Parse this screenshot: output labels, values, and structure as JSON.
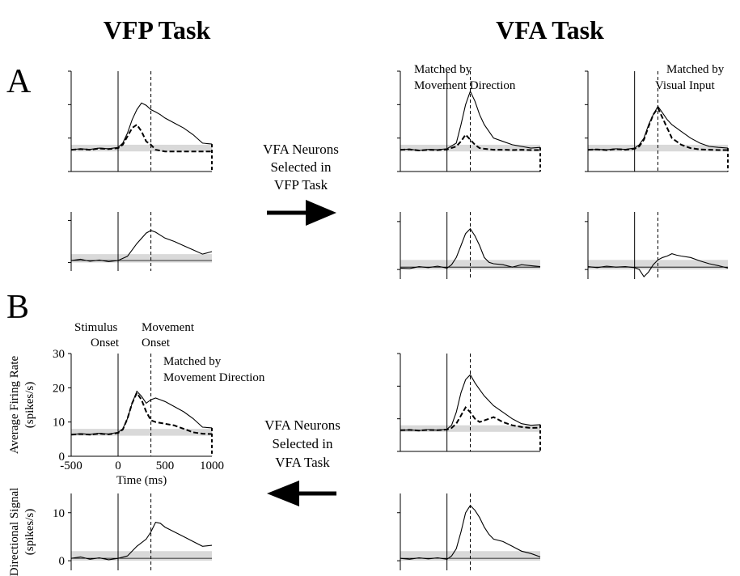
{
  "titles": {
    "left": "VFP Task",
    "right": "VFA Task"
  },
  "panel_letters": [
    "A",
    "B"
  ],
  "annotations": {
    "matched_direction": [
      "Matched by",
      "Movement Direction"
    ],
    "matched_visual": [
      "Matched by",
      "Visual Input"
    ],
    "stimulus_onset": [
      "Stimulus",
      "Onset"
    ],
    "movement_onset": [
      "Movement",
      "Onset"
    ],
    "selected_vfp": [
      "VFA Neurons",
      "Selected in",
      "VFP Task"
    ],
    "selected_vfa": [
      "VFA Neurons",
      "Selected in",
      "VFA Task"
    ]
  },
  "colors": {
    "baseline_band": "#d9d9d9",
    "trace": "#000000",
    "arrow": "#000000"
  },
  "chart_data": [
    {
      "id": "A-vfp-rate",
      "type": "line",
      "xlim": [
        -500,
        1000
      ],
      "ylim": [
        0,
        30
      ],
      "baseline": [
        6,
        8
      ],
      "movement_onset": 350,
      "series": [
        {
          "style": "solid",
          "x": [
            -500,
            -400,
            -300,
            -200,
            -100,
            0,
            50,
            100,
            150,
            200,
            250,
            300,
            350,
            400,
            450,
            500,
            600,
            700,
            800,
            900,
            1000
          ],
          "y": [
            6.5,
            6.8,
            6.6,
            7.0,
            6.8,
            7.2,
            8.5,
            11.5,
            15.5,
            18.5,
            20.5,
            19.8,
            18.5,
            17.8,
            17.0,
            16.0,
            14.5,
            13.0,
            11.0,
            8.5,
            8.2
          ]
        },
        {
          "style": "dashed",
          "x": [
            -500,
            -400,
            -300,
            -200,
            -100,
            0,
            50,
            100,
            150,
            200,
            250,
            300,
            350,
            400,
            500,
            600,
            700,
            800,
            900,
            1000
          ],
          "y": [
            6.5,
            6.7,
            6.5,
            6.9,
            6.7,
            7.0,
            8.0,
            10.5,
            13.0,
            14.0,
            12.0,
            9.0,
            8.0,
            6.5,
            6.0,
            6.0,
            6.0,
            6.0,
            6.0,
            6.0
          ]
        }
      ]
    },
    {
      "id": "A-vfp-dir",
      "type": "line",
      "xlim": [
        -500,
        1000
      ],
      "ylim": [
        -2,
        12
      ],
      "baseline": [
        0,
        2
      ],
      "movement_onset": 350,
      "series": [
        {
          "style": "solid",
          "x": [
            -500,
            -400,
            -300,
            -200,
            -100,
            0,
            100,
            200,
            300,
            350,
            400,
            450,
            500,
            600,
            700,
            800,
            900,
            1000
          ],
          "y": [
            0.5,
            0.8,
            0.3,
            0.6,
            0.2,
            0.5,
            1.5,
            4.5,
            7.0,
            7.6,
            7.2,
            6.5,
            5.8,
            5.0,
            4.0,
            3.0,
            2.0,
            2.6
          ]
        }
      ]
    },
    {
      "id": "A-vfa-direction-rate",
      "type": "line",
      "xlim": [
        -500,
        1000
      ],
      "ylim": [
        0,
        30
      ],
      "baseline": [
        6,
        8
      ],
      "movement_onset": 250,
      "series": [
        {
          "style": "solid",
          "x": [
            -500,
            -400,
            -300,
            -200,
            -100,
            0,
            100,
            150,
            200,
            250,
            300,
            350,
            400,
            450,
            500,
            600,
            700,
            800,
            900,
            1000
          ],
          "y": [
            6.5,
            6.7,
            6.3,
            6.6,
            6.5,
            6.8,
            8.5,
            14.0,
            20.0,
            24.0,
            21.0,
            17.0,
            14.0,
            12.0,
            10.0,
            9.0,
            8.0,
            7.5,
            7.0,
            7.2
          ]
        },
        {
          "style": "dashed",
          "x": [
            -500,
            -400,
            -300,
            -200,
            -100,
            0,
            100,
            150,
            200,
            250,
            300,
            350,
            400,
            500,
            600,
            700,
            800,
            900,
            1000
          ],
          "y": [
            6.5,
            6.6,
            6.3,
            6.5,
            6.4,
            6.6,
            7.5,
            9.0,
            11.0,
            9.5,
            8.0,
            7.0,
            6.8,
            6.5,
            6.5,
            6.4,
            6.5,
            6.4,
            6.4
          ]
        }
      ]
    },
    {
      "id": "A-vfa-direction-dir",
      "type": "line",
      "xlim": [
        -500,
        1000
      ],
      "ylim": [
        -2,
        12
      ],
      "baseline": [
        0,
        2
      ],
      "movement_onset": 250,
      "series": [
        {
          "style": "solid",
          "x": [
            -500,
            -400,
            -300,
            -200,
            -100,
            0,
            50,
            100,
            150,
            200,
            250,
            300,
            350,
            400,
            450,
            500,
            600,
            700,
            800,
            900,
            1000
          ],
          "y": [
            0.3,
            0.2,
            0.6,
            0.4,
            0.7,
            0.3,
            1.0,
            2.5,
            5.0,
            7.5,
            8.5,
            7.0,
            5.0,
            2.5,
            1.5,
            1.2,
            1.0,
            0.5,
            1.0,
            0.8,
            0.6
          ]
        }
      ]
    },
    {
      "id": "A-vfa-visual-rate",
      "type": "line",
      "xlim": [
        -500,
        1000
      ],
      "ylim": [
        0,
        30
      ],
      "baseline": [
        6,
        8
      ],
      "movement_onset": 250,
      "series": [
        {
          "style": "solid",
          "x": [
            -500,
            -400,
            -300,
            -200,
            -100,
            0,
            50,
            100,
            150,
            200,
            250,
            300,
            350,
            400,
            500,
            600,
            700,
            800,
            900,
            1000
          ],
          "y": [
            6.5,
            6.6,
            6.5,
            6.8,
            6.6,
            7.0,
            8.0,
            10.0,
            14.0,
            17.0,
            19.5,
            17.5,
            15.5,
            14.0,
            12.0,
            10.0,
            8.5,
            7.5,
            7.2,
            7.0
          ]
        },
        {
          "style": "dashed",
          "x": [
            -500,
            -400,
            -300,
            -200,
            -100,
            0,
            50,
            100,
            150,
            200,
            250,
            300,
            350,
            400,
            500,
            600,
            700,
            800,
            900,
            1000
          ],
          "y": [
            6.5,
            6.6,
            6.4,
            6.7,
            6.5,
            6.8,
            7.5,
            9.5,
            13.5,
            17.0,
            19.0,
            16.0,
            13.0,
            10.0,
            8.0,
            7.0,
            6.6,
            6.5,
            6.4,
            6.4
          ]
        }
      ]
    },
    {
      "id": "A-vfa-visual-dir",
      "type": "line",
      "xlim": [
        -500,
        1000
      ],
      "ylim": [
        -2,
        12
      ],
      "baseline": [
        0,
        2
      ],
      "movement_onset": 250,
      "series": [
        {
          "style": "solid",
          "x": [
            -500,
            -400,
            -300,
            -200,
            -100,
            0,
            50,
            100,
            150,
            200,
            250,
            300,
            350,
            400,
            450,
            500,
            600,
            700,
            800,
            900,
            1000
          ],
          "y": [
            0.6,
            0.4,
            0.7,
            0.5,
            0.6,
            0.4,
            0.0,
            -1.5,
            -0.5,
            1.0,
            2.0,
            2.5,
            2.8,
            3.3,
            3.0,
            2.8,
            2.5,
            1.8,
            1.2,
            0.8,
            0.3
          ]
        }
      ]
    },
    {
      "id": "B-vfp-rate",
      "type": "line",
      "xlim": [
        -500,
        1000
      ],
      "ylim": [
        0,
        30
      ],
      "baseline": [
        6,
        8
      ],
      "movement_onset": 350,
      "xticks": [
        -500,
        0,
        500,
        1000
      ],
      "yticks": [
        0,
        10,
        20,
        30
      ],
      "xlabel": "Time (ms)",
      "ylabel": [
        "Average Firing Rate",
        "(spikes/s)"
      ],
      "series": [
        {
          "style": "solid",
          "x": [
            -500,
            -400,
            -300,
            -200,
            -100,
            0,
            50,
            100,
            150,
            200,
            250,
            300,
            350,
            400,
            450,
            500,
            600,
            700,
            800,
            900,
            1000
          ],
          "y": [
            6.3,
            6.6,
            6.4,
            6.7,
            6.5,
            7.0,
            8.0,
            11.0,
            15.5,
            19.0,
            17.5,
            15.5,
            16.5,
            17.0,
            16.5,
            16.0,
            14.5,
            13.0,
            11.0,
            8.5,
            8.3
          ]
        },
        {
          "style": "dashed",
          "x": [
            -500,
            -400,
            -300,
            -200,
            -100,
            0,
            50,
            100,
            150,
            200,
            250,
            300,
            350,
            400,
            500,
            600,
            700,
            800,
            900,
            1000
          ],
          "y": [
            6.3,
            6.5,
            6.3,
            6.6,
            6.4,
            6.8,
            7.8,
            11.0,
            15.5,
            18.5,
            16.5,
            13.0,
            10.5,
            10.0,
            9.5,
            9.0,
            8.0,
            7.0,
            6.6,
            6.5
          ]
        }
      ]
    },
    {
      "id": "B-vfp-dir",
      "type": "line",
      "xlim": [
        -500,
        1000
      ],
      "ylim": [
        -2,
        14
      ],
      "baseline": [
        0,
        2
      ],
      "movement_onset": 350,
      "yticks": [
        0,
        10
      ],
      "ylabel": [
        "Directional Signal",
        "(spikes/s)"
      ],
      "series": [
        {
          "style": "solid",
          "x": [
            -500,
            -400,
            -300,
            -200,
            -100,
            0,
            100,
            200,
            300,
            350,
            400,
            450,
            500,
            600,
            700,
            800,
            900,
            1000
          ],
          "y": [
            0.5,
            0.8,
            0.3,
            0.6,
            0.2,
            0.5,
            1.0,
            3.0,
            4.5,
            6.0,
            8.0,
            7.8,
            7.0,
            6.0,
            5.0,
            4.0,
            3.0,
            3.2
          ]
        }
      ]
    },
    {
      "id": "B-vfa-rate",
      "type": "line",
      "xlim": [
        -500,
        1000
      ],
      "ylim": [
        0,
        30
      ],
      "baseline": [
        6,
        8
      ],
      "movement_onset": 250,
      "series": [
        {
          "style": "solid",
          "x": [
            -500,
            -400,
            -300,
            -200,
            -100,
            0,
            50,
            100,
            150,
            200,
            250,
            300,
            350,
            400,
            500,
            600,
            700,
            800,
            900,
            1000
          ],
          "y": [
            6.5,
            6.6,
            6.4,
            6.7,
            6.5,
            6.8,
            8.0,
            12.0,
            18.0,
            22.0,
            23.5,
            21.0,
            19.0,
            17.0,
            14.0,
            12.0,
            10.0,
            8.5,
            8.0,
            8.2
          ]
        },
        {
          "style": "dashed",
          "x": [
            -500,
            -400,
            -300,
            -200,
            -100,
            0,
            50,
            100,
            150,
            200,
            250,
            300,
            350,
            400,
            500,
            600,
            700,
            800,
            900,
            1000
          ],
          "y": [
            6.5,
            6.6,
            6.4,
            6.6,
            6.5,
            6.7,
            7.2,
            8.5,
            11.0,
            13.5,
            12.0,
            10.0,
            9.0,
            9.5,
            10.5,
            9.0,
            8.0,
            7.5,
            7.2,
            7.3
          ]
        }
      ]
    },
    {
      "id": "B-vfa-dir",
      "type": "line",
      "xlim": [
        -500,
        1000
      ],
      "ylim": [
        -2,
        14
      ],
      "baseline": [
        0,
        2
      ],
      "movement_onset": 250,
      "series": [
        {
          "style": "solid",
          "x": [
            -500,
            -400,
            -300,
            -200,
            -100,
            0,
            50,
            100,
            150,
            200,
            250,
            300,
            350,
            400,
            450,
            500,
            600,
            700,
            800,
            900,
            1000
          ],
          "y": [
            0.5,
            0.3,
            0.6,
            0.4,
            0.6,
            0.3,
            1.0,
            2.5,
            6.0,
            10.0,
            11.5,
            10.5,
            9.0,
            7.0,
            5.5,
            4.5,
            4.0,
            3.0,
            2.0,
            1.5,
            0.8
          ]
        }
      ]
    }
  ]
}
